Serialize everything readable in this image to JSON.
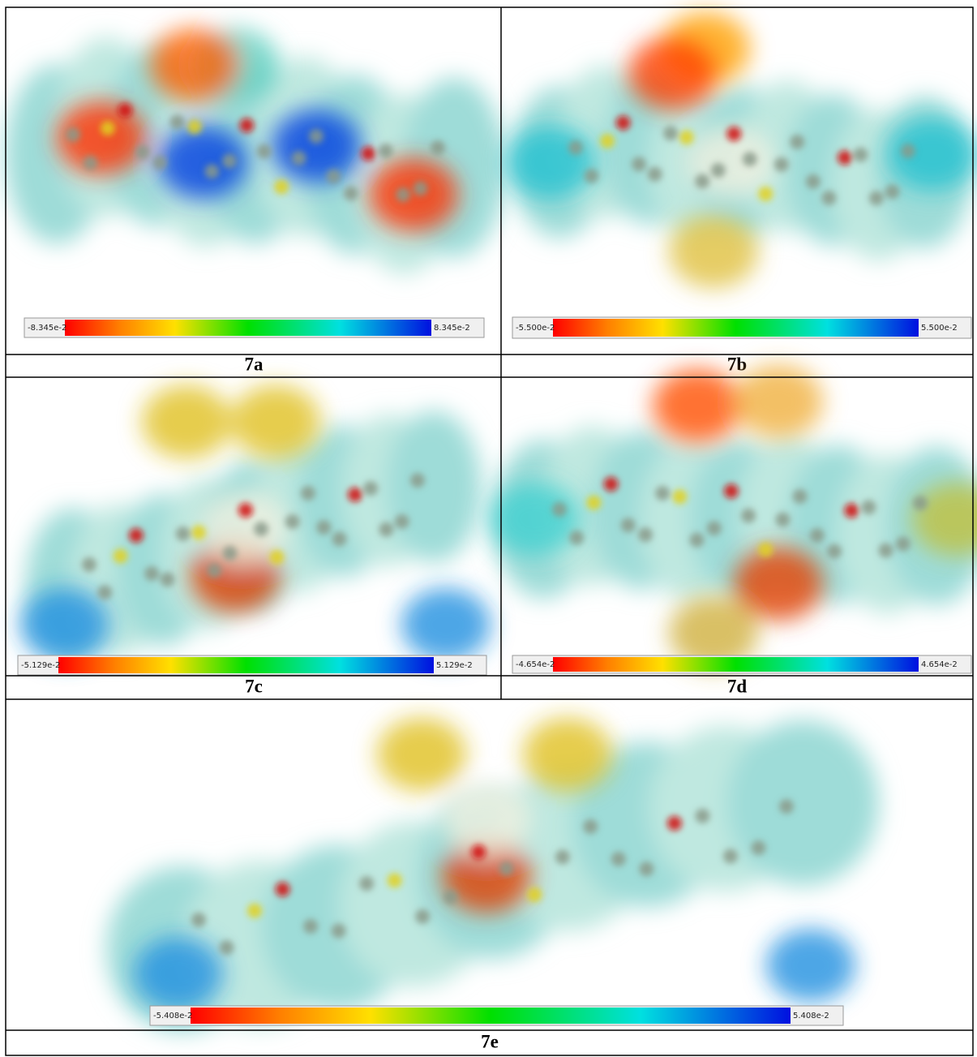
{
  "panels": [
    {
      "label": "7a",
      "scale_min": "-8.345e-2",
      "scale_max": "8.345e-2"
    },
    {
      "label": "7b",
      "scale_min": "-5.500e-2",
      "scale_max": "5.500e-2"
    },
    {
      "label": "7c",
      "scale_min": "-5.129e-2",
      "scale_max": "5.129e-2"
    },
    {
      "label": "7d",
      "scale_min": "-4.654e-2",
      "scale_max": "4.654e-2"
    },
    {
      "label": "7e",
      "scale_min": "-5.408e-2",
      "scale_max": "5.408e-2"
    }
  ]
}
